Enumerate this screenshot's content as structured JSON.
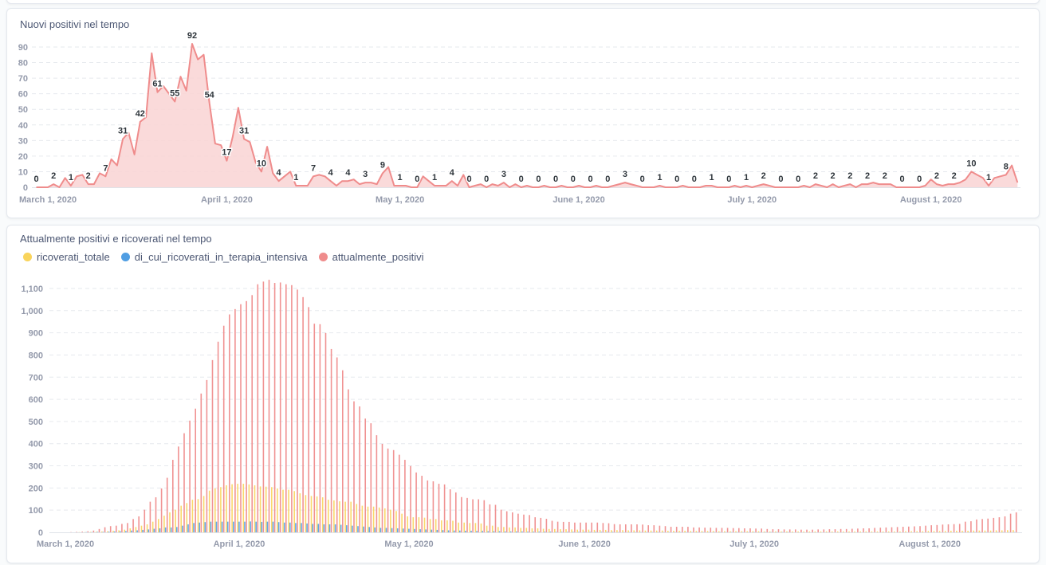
{
  "colors": {
    "positivi": "#ef8c8c",
    "positivi_fill": "#f9d3d3",
    "ricoverati": "#f9d45c",
    "intensiva": "#509ee3"
  },
  "chart_data": [
    {
      "type": "area",
      "title": "Nuovi positivi nel tempo",
      "ylim": [
        0,
        92
      ],
      "yticks": [
        "0",
        "10",
        "20",
        "30",
        "40",
        "50",
        "60",
        "70",
        "80",
        "90"
      ],
      "xticks": [
        "March 1, 2020",
        "April 1, 2020",
        "May 1, 2020",
        "June 1, 2020",
        "July 1, 2020",
        "August 1, 2020"
      ],
      "xtick_dates": [
        "2020-03-01",
        "2020-04-01",
        "2020-05-01",
        "2020-06-01",
        "2020-07-01",
        "2020-08-01"
      ],
      "grid": true,
      "data_labels": true,
      "series": [
        {
          "values": [
            0,
            0,
            0,
            2,
            0,
            6,
            1,
            7,
            8,
            2,
            2,
            9,
            7,
            18,
            14,
            31,
            35,
            21,
            42,
            45,
            86,
            61,
            65,
            60,
            55,
            71,
            62,
            92,
            82,
            85,
            54,
            28,
            27,
            17,
            32,
            51,
            31,
            29,
            16,
            10,
            26,
            9,
            4,
            7,
            10,
            1,
            1,
            1,
            7,
            8,
            7,
            4,
            1,
            4,
            4,
            5,
            2,
            3,
            3,
            2,
            9,
            13,
            1,
            1,
            1,
            0,
            0,
            7,
            4,
            1,
            1,
            1,
            4,
            1,
            8,
            0,
            1,
            2,
            0,
            2,
            1,
            3,
            0,
            2,
            0,
            1,
            0,
            0,
            1,
            0,
            0,
            1,
            0,
            0,
            1,
            0,
            0,
            1,
            0,
            0,
            1,
            2,
            3,
            2,
            1,
            0,
            0,
            0,
            1,
            0,
            0,
            0,
            1,
            0,
            0,
            0,
            1,
            1,
            0,
            0,
            0,
            1,
            0,
            1,
            0,
            1,
            2,
            1,
            0,
            0,
            0,
            0,
            0,
            1,
            0,
            2,
            1,
            0,
            2,
            0,
            1,
            2,
            0,
            2,
            2,
            3,
            2,
            2,
            2,
            0,
            0,
            0,
            0,
            0,
            1,
            5,
            2,
            1,
            2,
            2,
            3,
            5,
            10,
            8,
            6,
            1,
            6,
            7,
            8,
            14,
            3
          ]
        }
      ]
    },
    {
      "type": "bar",
      "title": "Attualmente positivi e ricoverati nel tempo",
      "ylim": [
        0,
        1100
      ],
      "yticks": [
        "0",
        "100",
        "200",
        "300",
        "400",
        "500",
        "600",
        "700",
        "800",
        "900",
        "1,000",
        "1,100"
      ],
      "xticks": [
        "March 1, 2020",
        "April 1, 2020",
        "May 1, 2020",
        "June 1, 2020",
        "July 1, 2020",
        "August 1, 2020"
      ],
      "xtick_dates": [
        "2020-03-01",
        "2020-04-01",
        "2020-05-01",
        "2020-06-01",
        "2020-07-01",
        "2020-08-01"
      ],
      "grid": true,
      "legend": "top-left",
      "series": [
        {
          "name": "ricoverati_totale",
          "color": "#f9d45c",
          "values": [
            0,
            0,
            0,
            0,
            0,
            1,
            1,
            2,
            3,
            4,
            5,
            7,
            9,
            12,
            18,
            24,
            30,
            36,
            48,
            60,
            75,
            90,
            102,
            120,
            132,
            147,
            150,
            164,
            188,
            198,
            204,
            212,
            217,
            219,
            219,
            216,
            212,
            207,
            206,
            204,
            198,
            192,
            192,
            186,
            176,
            168,
            164,
            162,
            158,
            147,
            144,
            140,
            138,
            138,
            128,
            120,
            116,
            116,
            112,
            108,
            102,
            96,
            84,
            72,
            68,
            68,
            66,
            60,
            60,
            54,
            54,
            52,
            44,
            44,
            42,
            42,
            40,
            30,
            30,
            24,
            24,
            22,
            22,
            20,
            20,
            18,
            18,
            16,
            15,
            15,
            14,
            14,
            13,
            12,
            12,
            12,
            11,
            11,
            11,
            10,
            10,
            10,
            9,
            9,
            9,
            8,
            8,
            8,
            8,
            7,
            7,
            7,
            7,
            6,
            6,
            6,
            6,
            6,
            5,
            5,
            5,
            5,
            5,
            5,
            5,
            5,
            4,
            4,
            4,
            4,
            4,
            4,
            4,
            4,
            4,
            4,
            4,
            4,
            4,
            4,
            4,
            4,
            4,
            4,
            4,
            4,
            4,
            4,
            4,
            4,
            4,
            5,
            5,
            5,
            5,
            6,
            6,
            6,
            6,
            7,
            7,
            7,
            7,
            8,
            8,
            8,
            8,
            9,
            9,
            10,
            10
          ]
        },
        {
          "name": "di_cui_ricoverati_in_terapia_intensiva",
          "color": "#509ee3",
          "values": [
            0,
            0,
            0,
            0,
            0,
            0,
            1,
            1,
            2,
            2,
            3,
            4,
            5,
            6,
            8,
            9,
            11,
            13,
            16,
            18,
            22,
            22,
            24,
            30,
            36,
            42,
            44,
            46,
            48,
            48,
            48,
            48,
            48,
            48,
            48,
            49,
            48,
            47,
            48,
            48,
            46,
            44,
            44,
            42,
            42,
            40,
            38,
            38,
            36,
            36,
            36,
            34,
            32,
            30,
            28,
            26,
            24,
            22,
            20,
            20,
            19,
            18,
            17,
            16,
            15,
            14,
            13,
            12,
            11,
            10,
            9,
            8,
            8,
            7,
            7,
            6,
            6,
            5,
            5,
            5,
            4,
            4,
            4,
            4,
            3,
            3,
            3,
            3,
            3,
            2,
            2,
            2,
            2,
            2,
            2,
            2,
            2,
            2,
            2,
            2,
            1,
            1,
            1,
            1,
            1,
            1,
            1,
            1,
            1,
            1,
            1,
            1,
            1,
            1,
            1,
            1,
            1,
            1,
            1,
            1,
            1,
            1,
            1,
            1,
            1,
            1,
            1,
            1,
            1,
            1,
            1,
            0,
            0,
            0,
            0,
            0,
            0,
            0,
            0,
            0,
            0,
            0,
            0,
            0,
            0,
            0,
            0,
            0,
            0,
            0,
            0,
            0,
            0,
            0,
            0,
            0,
            0,
            0,
            0,
            0,
            0,
            1,
            1,
            1,
            1,
            1,
            1,
            1,
            1,
            1,
            1
          ]
        },
        {
          "name": "attualmente_positivi",
          "color": "#ef8c8c",
          "values": [
            0,
            0,
            0,
            1,
            2,
            3,
            5,
            8,
            15,
            23,
            28,
            30,
            38,
            42,
            60,
            72,
            102,
            138,
            158,
            198,
            246,
            327,
            387,
            447,
            504,
            558,
            626,
            687,
            777,
            860,
            932,
            983,
            1007,
            1029,
            1043,
            1070,
            1119,
            1131,
            1139,
            1125,
            1127,
            1119,
            1115,
            1095,
            1061,
            1016,
            941,
            939,
            899,
            827,
            789,
            731,
            645,
            591,
            568,
            513,
            492,
            438,
            399,
            378,
            371,
            350,
            327,
            299,
            270,
            255,
            234,
            230,
            219,
            216,
            194,
            180,
            159,
            155,
            149,
            149,
            145,
            126,
            124,
            102,
            95,
            90,
            84,
            80,
            78,
            68,
            65,
            61,
            52,
            48,
            47,
            47,
            44,
            44,
            44,
            44,
            44,
            42,
            41,
            37,
            36,
            36,
            36,
            36,
            35,
            32,
            32,
            30,
            28,
            25,
            25,
            25,
            25,
            22,
            22,
            21,
            21,
            20,
            20,
            20,
            19,
            19,
            18,
            18,
            17,
            17,
            15,
            14,
            14,
            13,
            13,
            13,
            12,
            12,
            12,
            13,
            13,
            14,
            14,
            15,
            15,
            16,
            17,
            18,
            18,
            20,
            21,
            22,
            23,
            24,
            25,
            26,
            27,
            28,
            30,
            32,
            33,
            35,
            36,
            37,
            38,
            48,
            50,
            58,
            60,
            62,
            65,
            68,
            72,
            84,
            90
          ]
        }
      ]
    }
  ],
  "dates": [
    "2020-02-28",
    "2020-02-29",
    "2020-03-01",
    "2020-03-02",
    "2020-03-03",
    "2020-03-04",
    "2020-03-05",
    "2020-03-06",
    "2020-03-07",
    "2020-03-08",
    "2020-03-09",
    "2020-03-10",
    "2020-03-11",
    "2020-03-12",
    "2020-03-13",
    "2020-03-14",
    "2020-03-15",
    "2020-03-16",
    "2020-03-17",
    "2020-03-18",
    "2020-03-19",
    "2020-03-20",
    "2020-03-21",
    "2020-03-22",
    "2020-03-23",
    "2020-03-24",
    "2020-03-25",
    "2020-03-26",
    "2020-03-27",
    "2020-03-28",
    "2020-03-29",
    "2020-03-30",
    "2020-03-31",
    "2020-04-01",
    "2020-04-02",
    "2020-04-03",
    "2020-04-04",
    "2020-04-05",
    "2020-04-06",
    "2020-04-07",
    "2020-04-08",
    "2020-04-09",
    "2020-04-10",
    "2020-04-11",
    "2020-04-12",
    "2020-04-13",
    "2020-04-14",
    "2020-04-15",
    "2020-04-16",
    "2020-04-17",
    "2020-04-18",
    "2020-04-19",
    "2020-04-20",
    "2020-04-21",
    "2020-04-22",
    "2020-04-23",
    "2020-04-24",
    "2020-04-25",
    "2020-04-26",
    "2020-04-27",
    "2020-04-28",
    "2020-04-29",
    "2020-04-30",
    "2020-05-01",
    "2020-05-02",
    "2020-05-03",
    "2020-05-04",
    "2020-05-05",
    "2020-05-06",
    "2020-05-07",
    "2020-05-08",
    "2020-05-09",
    "2020-05-10",
    "2020-05-11",
    "2020-05-12",
    "2020-05-13",
    "2020-05-14",
    "2020-05-15",
    "2020-05-16",
    "2020-05-17",
    "2020-05-18",
    "2020-05-19",
    "2020-05-20",
    "2020-05-21",
    "2020-05-22",
    "2020-05-23",
    "2020-05-24",
    "2020-05-25",
    "2020-05-26",
    "2020-05-27",
    "2020-05-28",
    "2020-05-29",
    "2020-05-30",
    "2020-05-31",
    "2020-06-01",
    "2020-06-02",
    "2020-06-03",
    "2020-06-04",
    "2020-06-05",
    "2020-06-06",
    "2020-06-07",
    "2020-06-08",
    "2020-06-09",
    "2020-06-10",
    "2020-06-11",
    "2020-06-12",
    "2020-06-13",
    "2020-06-14",
    "2020-06-15",
    "2020-06-16",
    "2020-06-17",
    "2020-06-18",
    "2020-06-19",
    "2020-06-20",
    "2020-06-21",
    "2020-06-22",
    "2020-06-23",
    "2020-06-24",
    "2020-06-25",
    "2020-06-26",
    "2020-06-27",
    "2020-06-28",
    "2020-06-29",
    "2020-06-30",
    "2020-07-01",
    "2020-07-02",
    "2020-07-03",
    "2020-07-04",
    "2020-07-05",
    "2020-07-06",
    "2020-07-07",
    "2020-07-08",
    "2020-07-09",
    "2020-07-10",
    "2020-07-11",
    "2020-07-12",
    "2020-07-13",
    "2020-07-14",
    "2020-07-15",
    "2020-07-16",
    "2020-07-17",
    "2020-07-18",
    "2020-07-19",
    "2020-07-20",
    "2020-07-21",
    "2020-07-22",
    "2020-07-23",
    "2020-07-24",
    "2020-07-25",
    "2020-07-26",
    "2020-07-27",
    "2020-07-28",
    "2020-07-29",
    "2020-07-30",
    "2020-07-31",
    "2020-08-01",
    "2020-08-02",
    "2020-08-03",
    "2020-08-04",
    "2020-08-05",
    "2020-08-06",
    "2020-08-07",
    "2020-08-08",
    "2020-08-09",
    "2020-08-10",
    "2020-08-11",
    "2020-08-12",
    "2020-08-13",
    "2020-08-14",
    "2020-08-15",
    "2020-08-16"
  ]
}
